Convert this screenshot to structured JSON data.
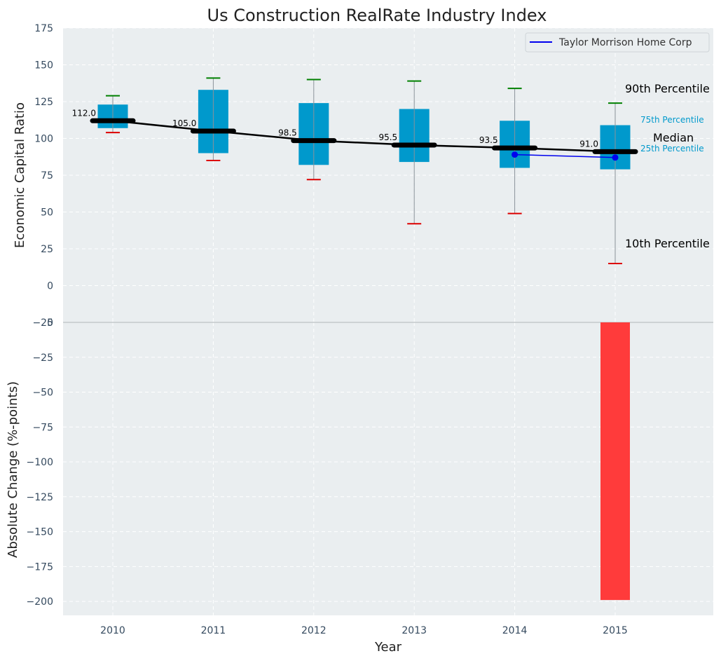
{
  "chart_data": [
    {
      "type": "box",
      "title": "Us Construction RealRate Industry Index",
      "xlabel": "",
      "ylabel": "Economic Capital Ratio",
      "ylim": [
        -25,
        175
      ],
      "yticks": [
        -25,
        0,
        25,
        50,
        75,
        100,
        125,
        150,
        175
      ],
      "ytick_labels": [
        "−25",
        "0",
        "25",
        "50",
        "75",
        "100",
        "125",
        "150",
        "175"
      ],
      "grid": true,
      "legend_position": "top-right",
      "categories": [
        "2010",
        "2011",
        "2012",
        "2013",
        "2014",
        "2015"
      ],
      "p10": [
        104,
        85,
        72,
        42,
        49,
        15
      ],
      "p25": [
        107,
        90,
        82,
        84,
        80,
        79
      ],
      "median": [
        112.0,
        105.0,
        98.5,
        95.5,
        93.5,
        91.0
      ],
      "median_labels": [
        "112.0",
        "105.0",
        "98.5",
        "95.5",
        "93.5",
        "91.0"
      ],
      "p75": [
        123,
        133,
        124,
        120,
        112,
        109
      ],
      "p90": [
        129,
        141,
        140,
        139,
        134,
        124
      ],
      "company_series": {
        "name": "Taylor Morrison Home Corp",
        "x": [
          "2014",
          "2015"
        ],
        "values": [
          89,
          87
        ]
      },
      "annotations": {
        "p90": "90th Percentile",
        "p75": "75th Percentile",
        "median": "Median",
        "p25": "25th Percentile",
        "p10": "10th Percentile"
      }
    },
    {
      "type": "bar",
      "xlabel": "Year",
      "ylabel": "Absolute Change (%-points)",
      "ylim": [
        -210,
        0
      ],
      "yticks": [
        0,
        -25,
        -50,
        -75,
        -100,
        -125,
        -150,
        -175,
        -200
      ],
      "ytick_labels": [
        "0",
        "−25",
        "−50",
        "−75",
        "−100",
        "−125",
        "−150",
        "−175",
        "−200"
      ],
      "grid": true,
      "categories": [
        "2010",
        "2011",
        "2012",
        "2013",
        "2014",
        "2015"
      ],
      "values": [
        0,
        0,
        0,
        0,
        0,
        -199
      ]
    }
  ],
  "colors": {
    "background": "#ffffff",
    "plot_bg": "#eaeef0",
    "grid": "#ffffff",
    "box": "#0099cc",
    "median": "#000000",
    "p90_cap": "#008000",
    "p10_cap": "#dd0000",
    "whisker": "#8a9299",
    "company": "#0000ee",
    "bar_negative": "#ff3b3b",
    "tick_text": "#34495e",
    "percentile_label": "#0099cc"
  }
}
